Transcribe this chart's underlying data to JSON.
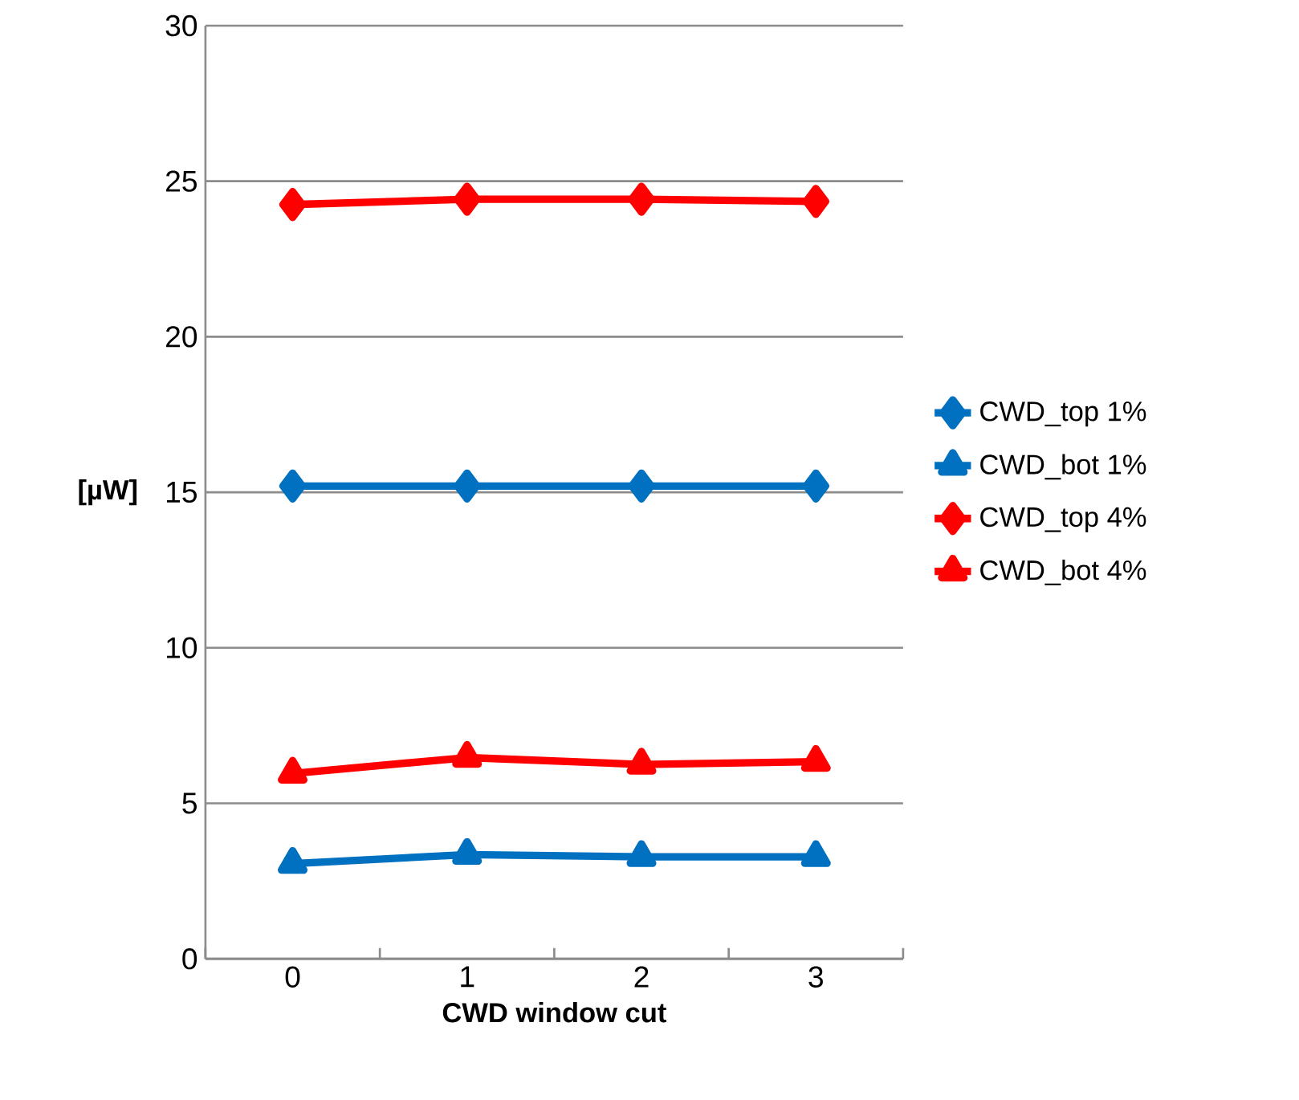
{
  "chart_data": {
    "type": "line",
    "xlabel": "CWD window cut",
    "ylabel": "[µW]",
    "categories": [
      "0",
      "1",
      "2",
      "3"
    ],
    "series": [
      {
        "name": "CWD_top 1%",
        "color": "#0070c0",
        "marker": "diamond",
        "values": [
          15.2,
          15.2,
          15.2,
          15.2
        ]
      },
      {
        "name": "CWD_bot 1%",
        "color": "#0070c0",
        "marker": "triangle",
        "values": [
          3.06,
          3.35,
          3.28,
          3.28
        ]
      },
      {
        "name": "CWD_top 4%",
        "color": "#ff0000",
        "marker": "diamond",
        "values": [
          24.25,
          24.42,
          24.42,
          24.35
        ]
      },
      {
        "name": "CWD_bot 4%",
        "color": "#ff0000",
        "marker": "triangle",
        "values": [
          5.96,
          6.47,
          6.25,
          6.34
        ]
      }
    ],
    "ylim": [
      0,
      30
    ],
    "yticks": [
      0,
      5,
      10,
      15,
      20,
      25,
      30
    ],
    "grid": "y",
    "legend": "right",
    "line_style": "solid"
  }
}
